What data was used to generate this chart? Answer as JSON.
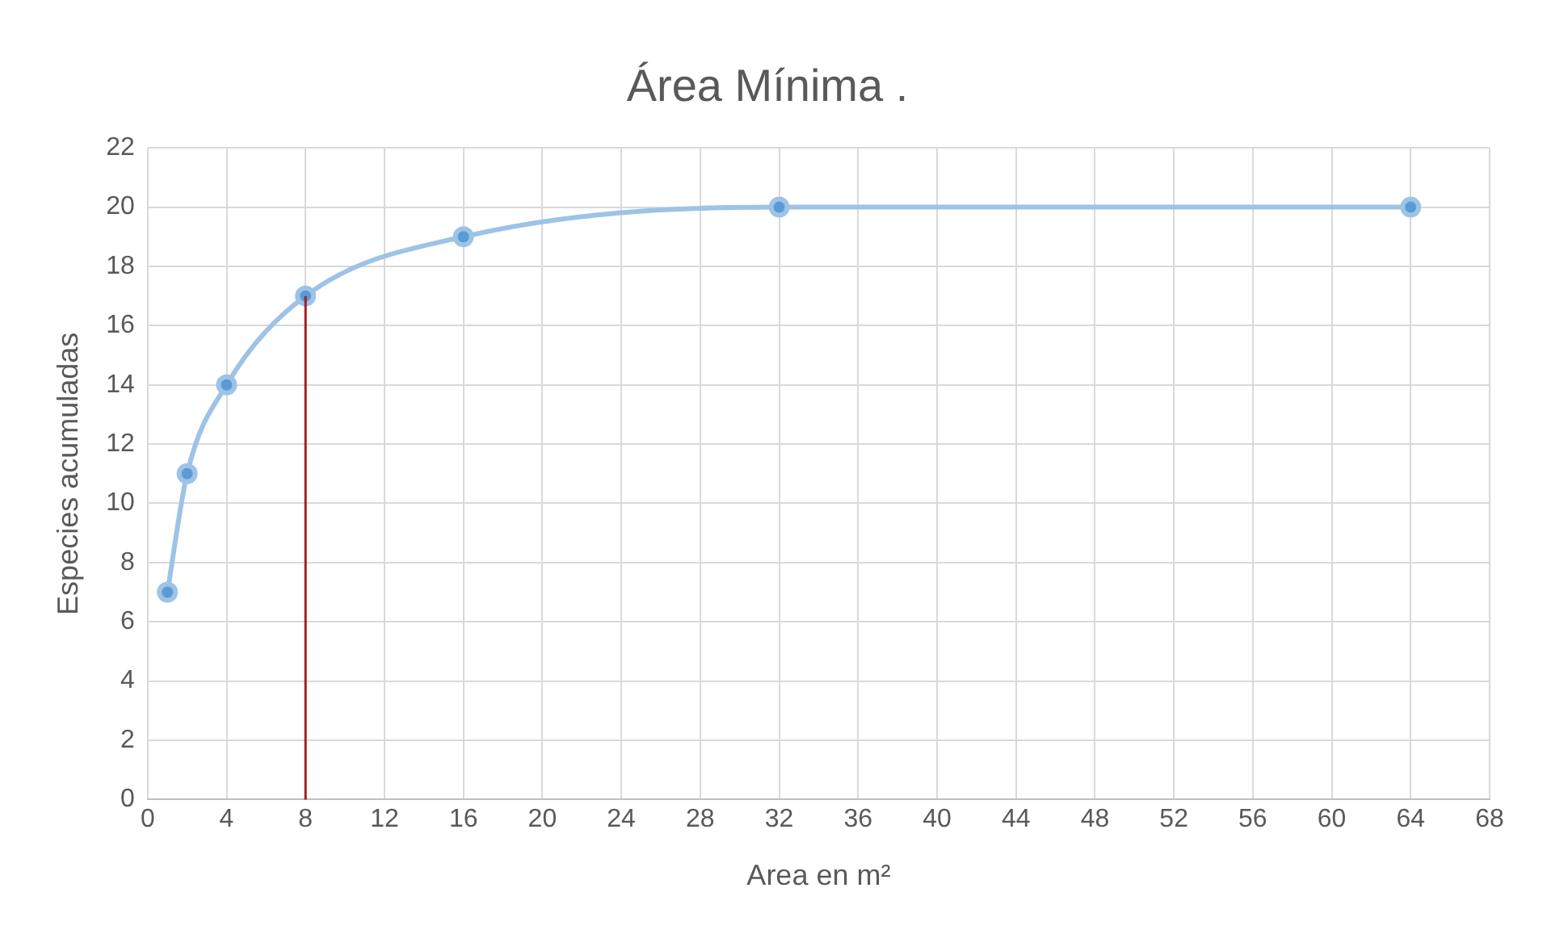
{
  "chart_data": {
    "type": "line",
    "title": "Área Mínima .",
    "xlabel": "Area en m²",
    "ylabel": "Especies acumuladas",
    "x": [
      1,
      2,
      4,
      8,
      16,
      32,
      64
    ],
    "series": [
      {
        "color": "#9dc3e6",
        "values": [
          7,
          11,
          14,
          17,
          19,
          20,
          20
        ]
      }
    ],
    "xlim": [
      0,
      68
    ],
    "xticks": [
      0,
      4,
      8,
      12,
      16,
      20,
      24,
      28,
      32,
      36,
      40,
      44,
      48,
      52,
      56,
      60,
      64,
      68
    ],
    "ylim": [
      0,
      22
    ],
    "yticks": [
      0,
      2,
      4,
      6,
      8,
      10,
      12,
      14,
      16,
      18,
      20,
      22
    ],
    "grid": true,
    "legend": false,
    "marker": "circle",
    "line_style": "solid",
    "ref_lines": [
      {
        "axis": "x",
        "value": 8,
        "color": "#a02020"
      }
    ]
  }
}
